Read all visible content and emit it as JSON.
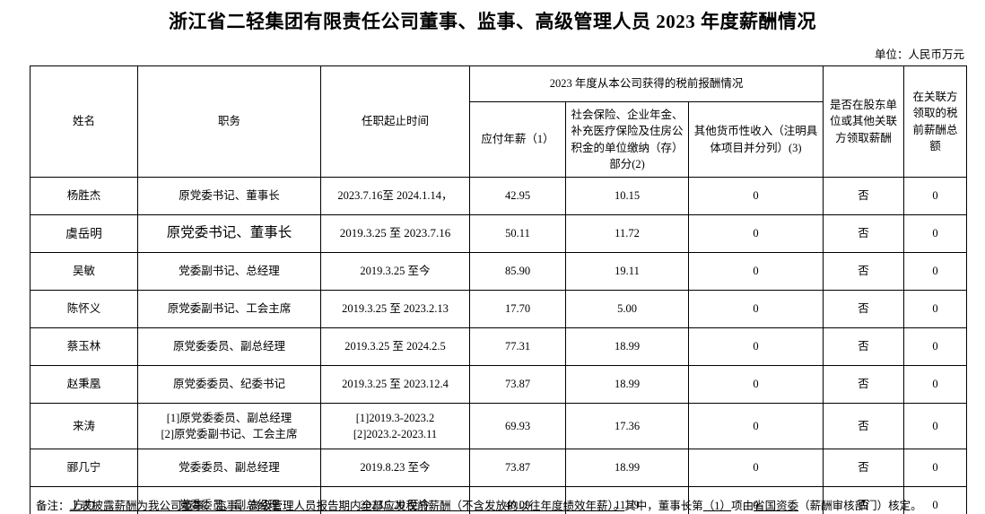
{
  "page": {
    "title": "浙江省二轻集团有限责任公司董事、监事、高级管理人员 2023 年度薪酬情况",
    "unit_note": "单位：人民币万元"
  },
  "colors": {
    "text": "#000000",
    "border": "#000000",
    "background": "#ffffff"
  },
  "table": {
    "headers": {
      "name": "姓名",
      "position": "职务",
      "term": "任职起止时间",
      "income_group": "2023 年度从本公司获得的税前报酬情况",
      "salary": "应付年薪（1）",
      "insurance": "社会保险、企业年金、补充医疗保险及住房公积金的单位缴纳（存）部分(2)",
      "other_income": "其他货币性收入（注明具体项目并分列）(3)",
      "related_party": "是否在股东单位或其他关联方领取薪酬",
      "related_total": "在关联方领取的税前薪酬总额"
    },
    "rows": [
      {
        "name": "杨胜杰",
        "position": [
          "原党委书记、董事长"
        ],
        "term": [
          "2023.7.16至 2024.1.14，"
        ],
        "salary": "42.95",
        "insurance": "10.15",
        "other": "0",
        "related": "否",
        "related_total": "0"
      },
      {
        "name": "虞岳明",
        "position": [
          "原党委书记、董事长"
        ],
        "term": [
          "2019.3.25 至 2023.7.16"
        ],
        "salary": "50.11",
        "insurance": "11.72",
        "other": "0",
        "related": "否",
        "related_total": "0"
      },
      {
        "name": "吴敏",
        "position": [
          "党委副书记、总经理"
        ],
        "term": [
          "2019.3.25 至今"
        ],
        "salary": "85.90",
        "insurance": "19.11",
        "other": "0",
        "related": "否",
        "related_total": "0"
      },
      {
        "name": "陈怀义",
        "position": [
          "原党委副书记、工会主席"
        ],
        "term": [
          "2019.3.25 至 2023.2.13"
        ],
        "salary": "17.70",
        "insurance": "5.00",
        "other": "0",
        "related": "否",
        "related_total": "0"
      },
      {
        "name": "蔡玉林",
        "position": [
          "原党委委员、副总经理"
        ],
        "term": [
          "2019.3.25 至 2024.2.5"
        ],
        "salary": "77.31",
        "insurance": "18.99",
        "other": "0",
        "related": "否",
        "related_total": "0"
      },
      {
        "name": "赵秉凰",
        "position": [
          "原党委委员、纪委书记"
        ],
        "term": [
          "2019.3.25 至 2023.12.4"
        ],
        "salary": "73.87",
        "insurance": "18.99",
        "other": "0",
        "related": "否",
        "related_total": "0"
      },
      {
        "name": "来涛",
        "position": [
          "[1]原党委委员、副总经理",
          "[2]原党委副书记、工会主席"
        ],
        "term": [
          "[1]2019.3-2023.2",
          "[2]2023.2-2023.11"
        ],
        "salary": "69.93",
        "insurance": "17.36",
        "other": "0",
        "related": "否",
        "related_total": "0"
      },
      {
        "name": "郦几宁",
        "position": [
          "党委委员、副总经理"
        ],
        "term": [
          "2019.8.23 至今"
        ],
        "salary": "73.87",
        "insurance": "18.99",
        "other": "0",
        "related": "否",
        "related_total": "0"
      },
      {
        "name": "方力",
        "position": [
          "党委委员、副总经理"
        ],
        "term": [
          "2023.5.20 至今"
        ],
        "salary": "40.09",
        "insurance": "11.79",
        "other": "0",
        "related": "否",
        "related_total": "0"
      }
    ]
  },
  "footer": {
    "label": "备注：",
    "body_underlined": "上表披露薪酬为我公司董事、监事、高级管理人员报告期内全部应发税前薪酬（不含发放的以往年度绩效年薪）。",
    "mid1": "其中，董事长第",
    "blank1": "（1）",
    "mid2": "项由",
    "blank2": "省国资委",
    "tail": "（薪酬审核部门）核定。"
  }
}
